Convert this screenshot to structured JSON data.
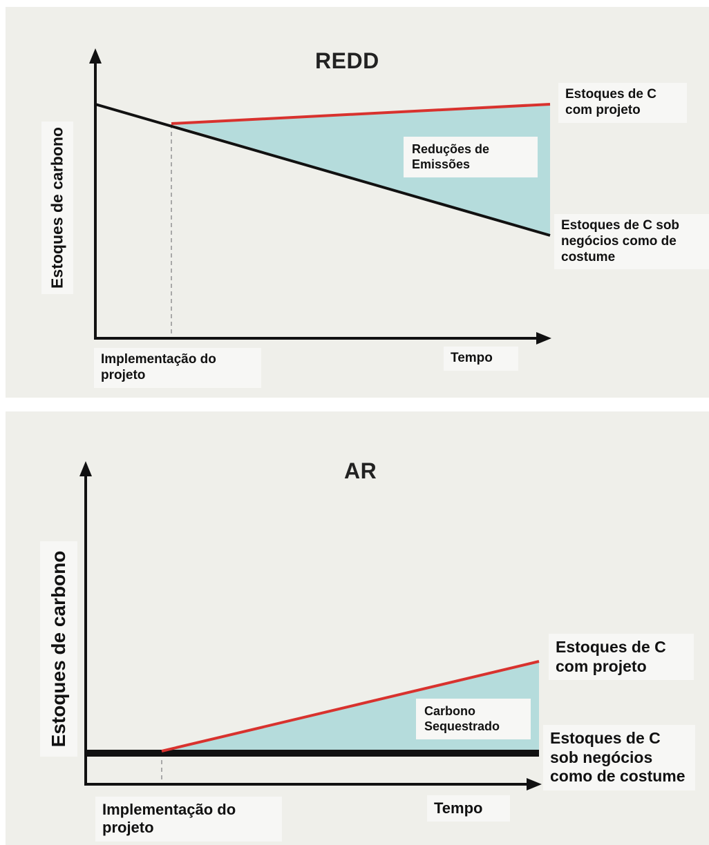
{
  "redd": {
    "title": "REDD",
    "y_axis_label": "Estoques de carbono",
    "x_start_label": "Implementação do projeto",
    "x_end_label": "Tempo",
    "project_line_label": "Estoques de C com projeto",
    "baseline_label": "Estoques de C sob negócios como de costume",
    "area_label": "Reduções de Emissões"
  },
  "ar": {
    "title": "AR",
    "y_axis_label": "Estoques de carbono",
    "x_start_label": "Implementação do projeto",
    "x_end_label": "Tempo",
    "project_line_label": "Estoques de C com projeto",
    "baseline_label": "Estoques de C sob negócios como de costume",
    "area_label": "Carbono Sequestrado"
  },
  "colors": {
    "panel_background": "#efefea",
    "project_line": "#d8322e",
    "baseline": "#111111",
    "area_fill": "#b5dcdc",
    "implementation_marker": "#a8a8a8"
  }
}
